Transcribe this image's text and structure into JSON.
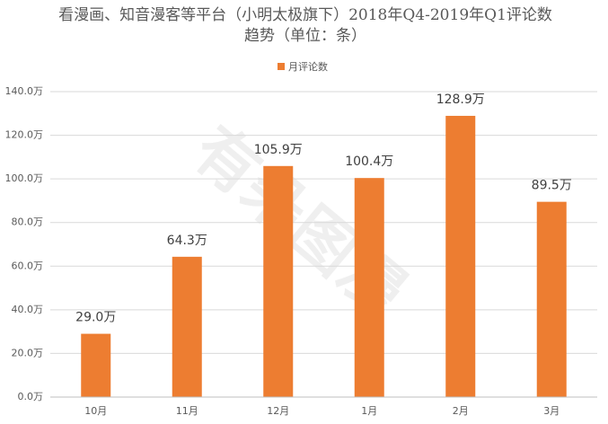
{
  "chart_data": {
    "type": "bar",
    "title": "看漫画、知音漫客等平台（小明太极旗下）2018年Q4-2019年Q1评论数趋势（单位：条）",
    "watermark": "有朵图漫",
    "categories": [
      "10月",
      "11月",
      "12月",
      "1月",
      "2月",
      "3月"
    ],
    "series": [
      {
        "name": "月评论数",
        "color": "#ed7d31",
        "values": [
          29.0,
          64.3,
          105.9,
          100.4,
          128.9,
          89.5
        ],
        "value_labels": [
          "29.0万",
          "64.3万",
          "105.9万",
          "100.4万",
          "128.9万",
          "89.5万"
        ]
      }
    ],
    "ylim": [
      0,
      140
    ],
    "yticks": [
      {
        "value": 0,
        "label": "0.0万"
      },
      {
        "value": 20,
        "label": "20.0万"
      },
      {
        "value": 40,
        "label": "40.0万"
      },
      {
        "value": 60,
        "label": "60.0万"
      },
      {
        "value": 80,
        "label": "80.0万"
      },
      {
        "value": 100,
        "label": "100.0万"
      },
      {
        "value": 120,
        "label": "120.0万"
      },
      {
        "value": 140,
        "label": "140.0万"
      }
    ],
    "grid": true,
    "legend": "top"
  }
}
